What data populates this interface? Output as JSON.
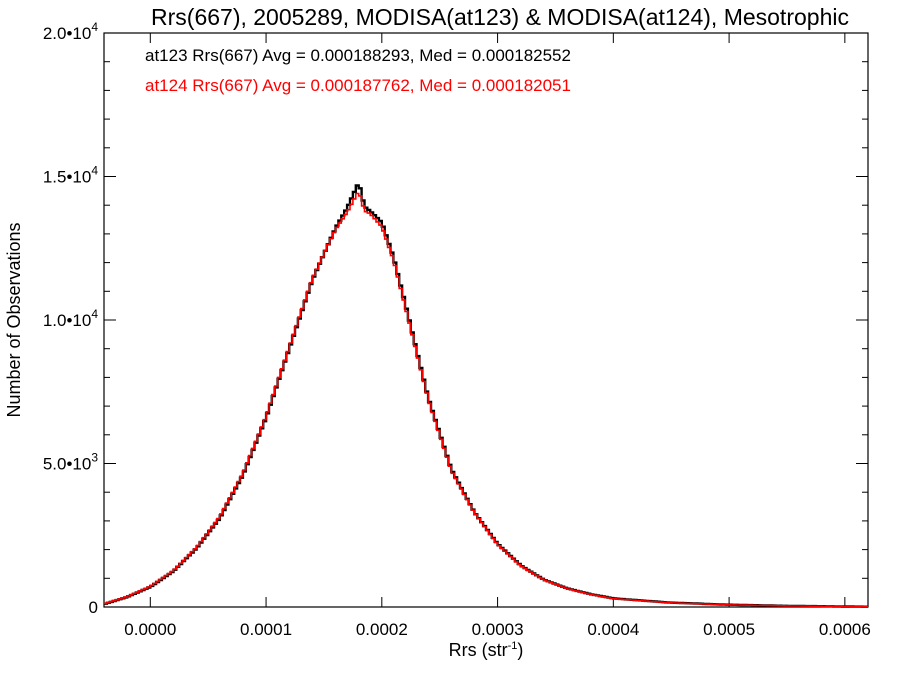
{
  "chart_data": {
    "type": "histogram-step",
    "title": "Rrs(667), 2005289, MODISA(at123) & MODISA(at124), Mesotrophic",
    "xlabel": "Rrs (str",
    "xlabel_sup": "-1",
    "xlabel_end": ")",
    "ylabel": "Number of Observations",
    "xlim": [
      -4e-05,
      0.00062
    ],
    "ylim": [
      0,
      20000
    ],
    "x_ticks": [
      0.0,
      0.0001,
      0.0002,
      0.0003,
      0.0004,
      0.0005,
      0.0006
    ],
    "x_tick_labels": [
      "0.0000",
      "0.0001",
      "0.0002",
      "0.0003",
      "0.0004",
      "0.0005",
      "0.0006"
    ],
    "y_ticks": [
      0,
      5000,
      10000,
      15000,
      20000
    ],
    "y_tick_labels": [
      {
        "base": "0",
        "exp": ""
      },
      {
        "base": "5.0•1",
        "exp": "3",
        "prefix": "5.0•10"
      },
      {
        "base": "1.0•1",
        "exp": "4",
        "prefix": "1.0•10"
      },
      {
        "base": "1.5•1",
        "exp": "4",
        "prefix": "1.5•10"
      },
      {
        "base": "2.0•1",
        "exp": "4",
        "prefix": "2.0•10"
      }
    ],
    "grid": false,
    "series": [
      {
        "name": "at123",
        "color": "#000000",
        "stats_label": "at123 Rrs(667) Avg = 0.000188293, Med = 0.000182552",
        "x": [
          -4e-05,
          -2e-05,
          0.0,
          2e-05,
          4e-05,
          6e-05,
          8e-05,
          0.0001,
          0.00012,
          0.00014,
          0.00016,
          0.00017,
          0.00018,
          0.000185,
          0.00019,
          0.0002,
          0.00021,
          0.00022,
          0.00024,
          0.00026,
          0.00028,
          0.0003,
          0.00032,
          0.00034,
          0.00036,
          0.00038,
          0.0004,
          0.00045,
          0.0005,
          0.00055,
          0.00062
        ],
        "values": [
          100,
          350,
          700,
          1250,
          2050,
          3100,
          4600,
          6600,
          9000,
          11400,
          13200,
          13900,
          14800,
          13950,
          13800,
          13400,
          12200,
          10600,
          7300,
          4800,
          3300,
          2200,
          1450,
          950,
          650,
          450,
          300,
          150,
          80,
          40,
          10
        ]
      },
      {
        "name": "at124",
        "color": "#ff0000",
        "stats_label": "at124 Rrs(667) Avg = 0.000187762, Med = 0.000182051",
        "x": [
          -4e-05,
          -2e-05,
          0.0,
          2e-05,
          4e-05,
          6e-05,
          8e-05,
          0.0001,
          0.00012,
          0.00014,
          0.00016,
          0.00017,
          0.00018,
          0.000185,
          0.00019,
          0.0002,
          0.00021,
          0.00022,
          0.00024,
          0.00026,
          0.00028,
          0.0003,
          0.00032,
          0.00034,
          0.00036,
          0.00038,
          0.0004,
          0.00045,
          0.0005,
          0.00055,
          0.00062
        ],
        "values": [
          110,
          360,
          720,
          1270,
          2080,
          3150,
          4650,
          6650,
          9050,
          11450,
          13150,
          13750,
          14500,
          13800,
          13700,
          13250,
          12100,
          10500,
          7250,
          4750,
          3280,
          2180,
          1430,
          940,
          640,
          440,
          290,
          145,
          75,
          38,
          10
        ]
      }
    ]
  }
}
